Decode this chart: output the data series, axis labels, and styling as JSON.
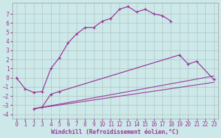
{
  "xlabel": "Windchill (Refroidissement éolien,°C)",
  "bg_color": "#cce8e8",
  "line_color": "#993399",
  "ylim": [
    -4.5,
    8.2
  ],
  "xlim": [
    -0.5,
    23.5
  ],
  "yticks": [
    -4,
    -3,
    -2,
    -1,
    0,
    1,
    2,
    3,
    4,
    5,
    6,
    7
  ],
  "xticks": [
    0,
    1,
    2,
    3,
    4,
    5,
    6,
    7,
    8,
    9,
    10,
    11,
    12,
    13,
    14,
    15,
    16,
    17,
    18,
    19,
    20,
    21,
    22,
    23
  ],
  "curve1_x": [
    0,
    1,
    2,
    3,
    4,
    5,
    6,
    7,
    8,
    9,
    10,
    11,
    12,
    13,
    14,
    15,
    16,
    17,
    18
  ],
  "curve1_y": [
    0.0,
    -1.2,
    -1.6,
    -1.5,
    1.0,
    2.2,
    3.8,
    4.8,
    5.5,
    5.5,
    6.2,
    6.5,
    7.5,
    7.8,
    7.2,
    7.5,
    7.0,
    6.8,
    6.2
  ],
  "curve2_x": [
    2,
    3,
    4,
    5,
    19,
    20,
    21,
    23
  ],
  "curve2_y": [
    -3.4,
    -3.2,
    -1.8,
    -1.5,
    2.5,
    1.5,
    1.8,
    -0.2
  ],
  "line3_x": [
    2,
    23
  ],
  "line3_y": [
    -3.4,
    -0.5
  ],
  "line4_x": [
    2,
    23
  ],
  "line4_y": [
    -3.4,
    0.2
  ],
  "grid_color": "#aabbbb",
  "xlabel_fontsize": 6.0,
  "tick_fontsize": 5.5
}
